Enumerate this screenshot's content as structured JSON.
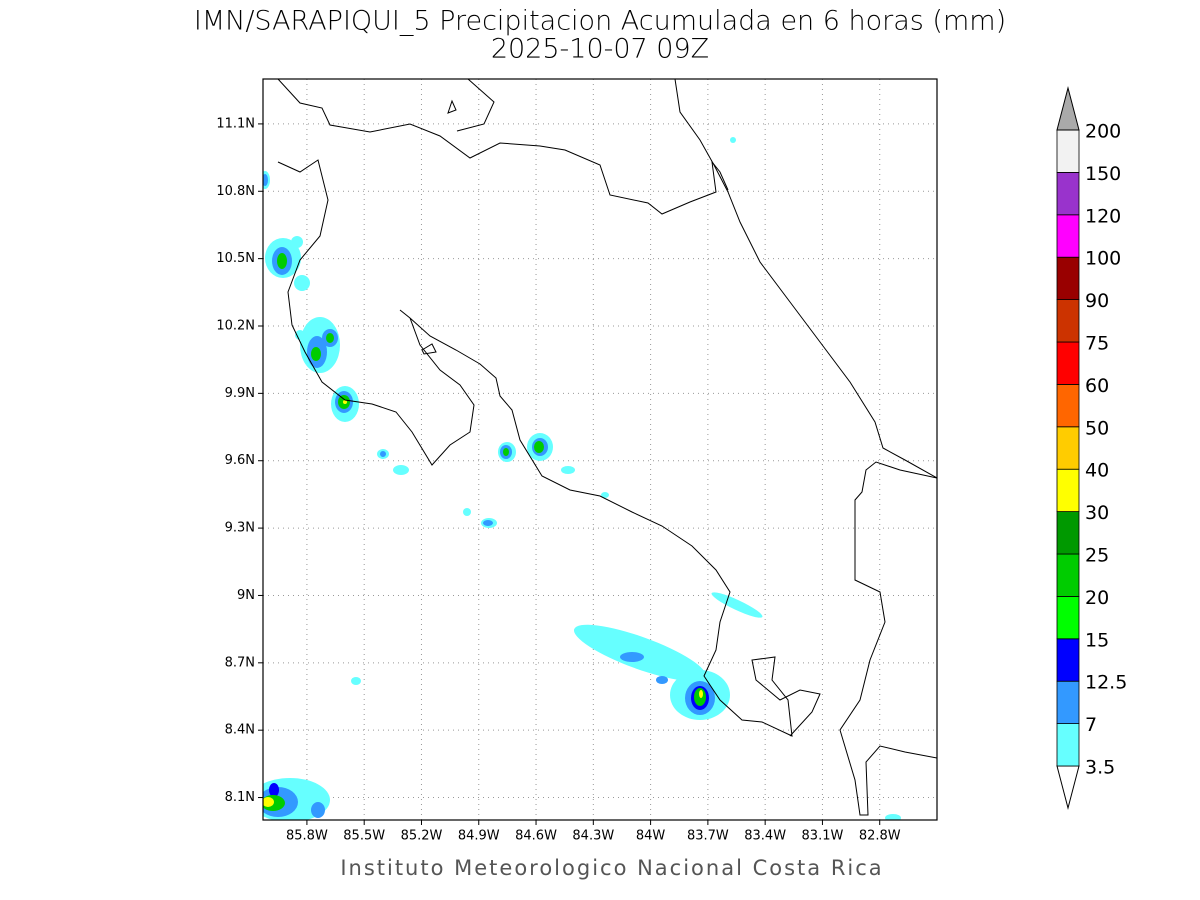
{
  "chart_data": {
    "type": "map",
    "title": "IMN/SARAPIQUI_5 Precipitacion Acumulada en 6 horas (mm)",
    "subtitle": "2025-10-07 09Z",
    "footer": "Instituto Meteorologico Nacional Costa Rica",
    "xlim": [
      -86.03,
      -82.5
    ],
    "ylim": [
      8.0,
      11.3
    ],
    "xticks": [
      {
        "value": -85.8,
        "label": "85.8W"
      },
      {
        "value": -85.5,
        "label": "85.5W"
      },
      {
        "value": -85.2,
        "label": "85.2W"
      },
      {
        "value": -84.9,
        "label": "84.9W"
      },
      {
        "value": -84.6,
        "label": "84.6W"
      },
      {
        "value": -84.3,
        "label": "84.3W"
      },
      {
        "value": -84,
        "label": "84W"
      },
      {
        "value": -83.7,
        "label": "83.7W"
      },
      {
        "value": -83.4,
        "label": "83.4W"
      },
      {
        "value": -83.1,
        "label": "83.1W"
      },
      {
        "value": -82.8,
        "label": "82.8W"
      }
    ],
    "yticks": [
      {
        "value": 8.1,
        "label": "8.1N"
      },
      {
        "value": 8.4,
        "label": "8.4N"
      },
      {
        "value": 8.7,
        "label": "8.7N"
      },
      {
        "value": 9,
        "label": "9N"
      },
      {
        "value": 9.3,
        "label": "9.3N"
      },
      {
        "value": 9.6,
        "label": "9.6N"
      },
      {
        "value": 9.9,
        "label": "9.9N"
      },
      {
        "value": 10.2,
        "label": "10.2N"
      },
      {
        "value": 10.5,
        "label": "10.5N"
      },
      {
        "value": 10.8,
        "label": "10.8N"
      },
      {
        "value": 11.1,
        "label": "11.1N"
      }
    ],
    "grid": true,
    "colorbar": {
      "levels": [
        3.5,
        7,
        12.5,
        15,
        20,
        25,
        30,
        40,
        50,
        60,
        75,
        90,
        100,
        120,
        150,
        200
      ],
      "colors": [
        "#ffffff",
        "#66ffff",
        "#3399ff",
        "#0000ff",
        "#00ff00",
        "#00cc00",
        "#009900",
        "#ffff00",
        "#ffcc00",
        "#ff6600",
        "#ff0000",
        "#cc3300",
        "#990000",
        "#ff00ff",
        "#9933cc",
        "#f2f2f2",
        "#aaaaaa"
      ]
    }
  }
}
